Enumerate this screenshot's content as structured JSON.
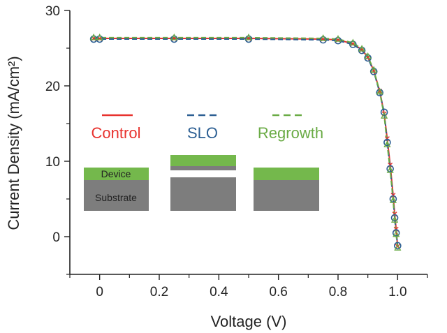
{
  "chart_data": {
    "type": "line",
    "xlabel": "Voltage (V)",
    "ylabel": "Current Density (mA/cm²)",
    "xlim": [
      -0.1,
      1.1
    ],
    "ylim": [
      -5,
      30
    ],
    "x_ticks": [
      0,
      0.2,
      0.4,
      0.6,
      0.8,
      1.0
    ],
    "x_tick_labels": [
      "0",
      "0.2",
      "0.4",
      "0.6",
      "0.8",
      "1.0"
    ],
    "y_ticks": [
      0,
      10,
      20,
      30
    ],
    "y_tick_labels": [
      "0",
      "10",
      "20",
      "30"
    ],
    "grid": false,
    "series": [
      {
        "name": "Control",
        "color": "#e8322e",
        "dash": "solid",
        "marker": "x",
        "x": [
          -0.02,
          0.0,
          0.25,
          0.5,
          0.75,
          0.8,
          0.85,
          0.88,
          0.9,
          0.92,
          0.94,
          0.955,
          0.965,
          0.975,
          0.985,
          0.99,
          0.995,
          1.0
        ],
        "y": [
          26.3,
          26.3,
          26.3,
          26.3,
          26.2,
          26.1,
          25.6,
          24.8,
          23.8,
          22.0,
          19.3,
          16.3,
          13.0,
          9.5,
          5.5,
          3.0,
          1.0,
          -1.3
        ]
      },
      {
        "name": "SLO",
        "color": "#2c5f93",
        "dash": "dashed",
        "marker": "circle",
        "x": [
          -0.02,
          0.0,
          0.25,
          0.5,
          0.75,
          0.8,
          0.85,
          0.88,
          0.9,
          0.92,
          0.94,
          0.955,
          0.965,
          0.975,
          0.985,
          0.99,
          0.995,
          1.0
        ],
        "y": [
          26.2,
          26.2,
          26.2,
          26.2,
          26.1,
          26.0,
          25.5,
          24.7,
          23.7,
          21.9,
          19.1,
          16.5,
          12.5,
          9.0,
          5.0,
          2.5,
          0.5,
          -1.2
        ]
      },
      {
        "name": "Regrowth",
        "color": "#6aab45",
        "dash": "dashed",
        "marker": "triangle",
        "x": [
          -0.02,
          0.0,
          0.25,
          0.5,
          0.75,
          0.8,
          0.85,
          0.88,
          0.9,
          0.92,
          0.94,
          0.955,
          0.965,
          0.975,
          0.985,
          0.99,
          0.995,
          1.0
        ],
        "y": [
          26.4,
          26.4,
          26.4,
          26.4,
          26.3,
          26.2,
          25.7,
          24.9,
          23.9,
          22.1,
          19.2,
          16.0,
          12.2,
          8.8,
          4.8,
          2.2,
          0.3,
          -1.5
        ]
      }
    ],
    "inset": {
      "device_label": "Device",
      "substrate_label": "Substrate",
      "device_color": "#74b84c",
      "substrate_color": "#7d7d7d"
    }
  }
}
